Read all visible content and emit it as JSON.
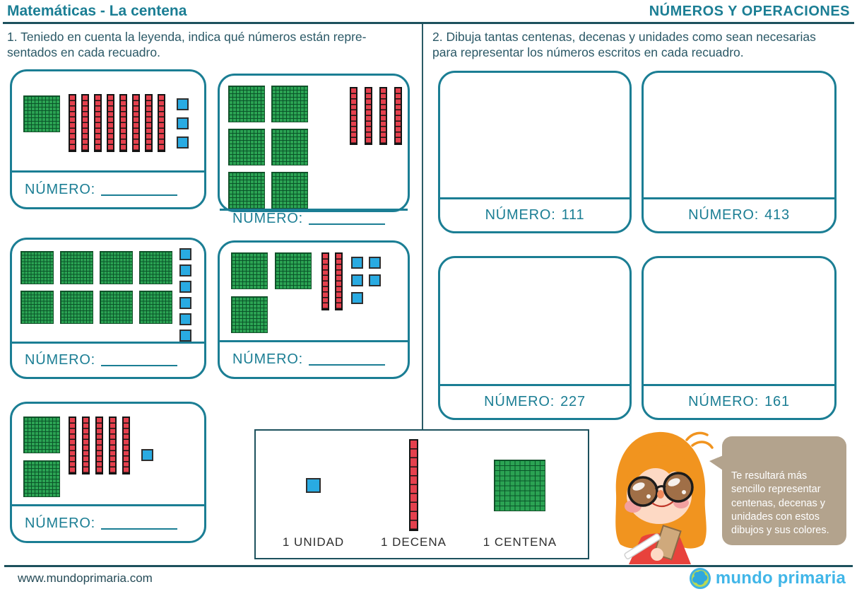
{
  "page": {
    "title": "Matemáticas - La centena",
    "category": "NÚMEROS Y OPERACIONES"
  },
  "exercise1": {
    "instructions": "1. Teniedo en cuenta la leyenda, indica qué números están repre-\nsentados en cada recuadro.",
    "answer_label": "NÚMERO:",
    "boxes": [
      {
        "centenas": 1,
        "decenas": 8,
        "unidades": 3
      },
      {
        "centenas": 6,
        "decenas": 4,
        "unidades": 0
      },
      {
        "centenas": 8,
        "decenas": 0,
        "unidades": 6
      },
      {
        "centenas": 3,
        "decenas": 2,
        "unidades": 5
      },
      {
        "centenas": 2,
        "decenas": 5,
        "unidades": 1
      }
    ]
  },
  "exercise2": {
    "instructions": "2. Dibuja tantas centenas, decenas y unidades como sean necesarias\npara representar los números escritos en cada recuadro.",
    "answer_label": "NÚMERO:",
    "boxes": [
      {
        "value": "111"
      },
      {
        "value": "413"
      },
      {
        "value": "227"
      },
      {
        "value": "161"
      }
    ]
  },
  "legend": {
    "items": [
      {
        "label": "1 UNIDAD",
        "block": "unidad"
      },
      {
        "label": "1 DECENA",
        "block": "decena"
      },
      {
        "label": "1 CENTENA",
        "block": "centena"
      }
    ]
  },
  "mascot": {
    "speech": "Te resultará más\n sencillo representar\ncentenas, decenas y\nunidades con estos\ndibujos y sus colores."
  },
  "footer": {
    "url": "www.mundoprimaria.com",
    "logo_text": "mundo primaria"
  },
  "colors": {
    "teal": "#1b7e94",
    "dark_line": "#1d515d",
    "text_dark": "#2a5866",
    "centena_green": "#2ba353",
    "decena_red": "#e5404d",
    "unidad_blue": "#29abe2",
    "bubble_tan": "#b3a38d",
    "logo_blue": "#41b6e8"
  }
}
